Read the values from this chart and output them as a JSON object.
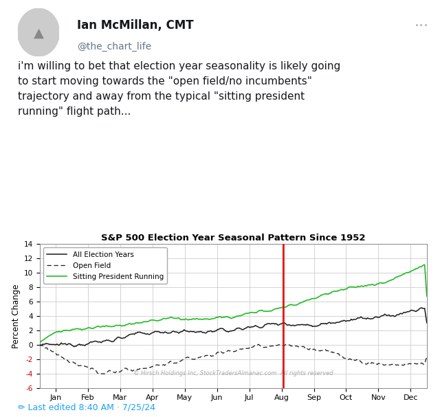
{
  "title": "S&P 500 Election Year Seasonal Pattern Since 1952",
  "ylabel": "Percent Change",
  "ylim": [
    -6,
    14
  ],
  "yticks": [
    -6,
    -4,
    -2,
    0,
    2,
    4,
    6,
    8,
    10,
    12,
    14
  ],
  "months": [
    "Jan",
    "Feb",
    "Mar",
    "Apr",
    "May",
    "Jun",
    "Jul",
    "Aug",
    "Sep",
    "Oct",
    "Nov",
    "Dec"
  ],
  "red_line_x": 7.55,
  "legend_labels": [
    "All Election Years",
    "Open Field",
    "Sitting President Running"
  ],
  "watermark": "© Hirsch Holdings Inc, StockTradersAlmanac.com  All rights reserved",
  "tweet_name": "Ian McMillan, CMT",
  "tweet_handle": "@the_chart_life",
  "tweet_line1": "i'm willing to bet that election year seasonality is likely going",
  "tweet_line2": "to start moving towards the \"open field/no incumbents\"",
  "tweet_line3": "trajectory and away from the typical \"sitting president",
  "tweet_line4": "running\" flight path...",
  "footer_text": "Last edited 8:40 AM · 7/25/24",
  "bg_color": "#ffffff",
  "chart_bg": "#ffffff",
  "grid_color": "#cccccc",
  "all_election_color": "#1a1a1a",
  "open_field_color": "#1a1a1a",
  "sitting_president_color": "#22bb22",
  "red_line_color": "#ee0000",
  "footer_color": "#1da1f2",
  "handle_color": "#657786",
  "name_color": "#14171a",
  "dots_color": "#aaaaaa",
  "tweet_text_color": "#14171a"
}
